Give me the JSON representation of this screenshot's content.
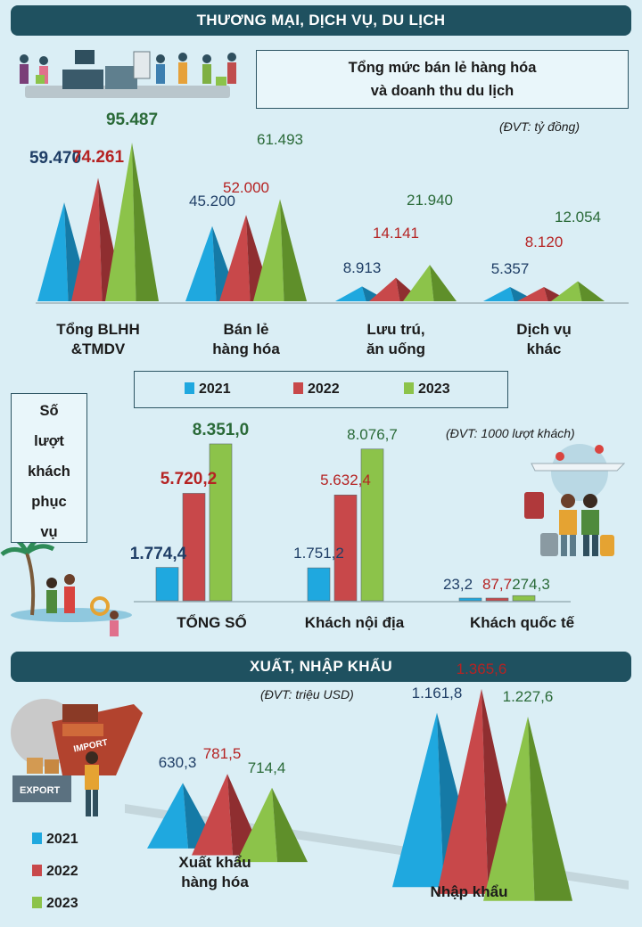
{
  "sections": {
    "trade": "THƯƠNG MẠI, DỊCH VỤ, DU LỊCH",
    "export": "XUẤT, NHẬP KHẨU"
  },
  "retail": {
    "title_line1": "Tổng mức bán lẻ hàng hóa",
    "title_line2": "và doanh thu du lịch",
    "unit": "(ĐVT: tỷ đồng)"
  },
  "visitors": {
    "box_lines": [
      "Số",
      "lượt",
      "khách",
      "phục",
      "vụ"
    ],
    "unit": "(ĐVT: 1000 lượt khách)"
  },
  "export_unit": "(ĐVT: triệu USD)",
  "legend": {
    "years": [
      "2021",
      "2022",
      "2023"
    ],
    "export_badge": "EXPORT",
    "import_badge": "IMPORT"
  },
  "colors": {
    "y2021": "#1fa8df",
    "y2022": "#c8484a",
    "y2023": "#8cc34a",
    "text2021": "#1f3e66",
    "text2022": "#b52323",
    "text2023": "#2a6a38",
    "banner": "#1f5160"
  },
  "chart_data": [
    {
      "type": "bar",
      "id": "retail",
      "categories": [
        "Tổng BLHH\n&TMDV",
        "Bán lẻ\nhàng hóa",
        "Lưu trú,\năn uống",
        "Dịch vụ\nkhác"
      ],
      "series": [
        {
          "name": "2021",
          "values": [
            59470,
            45200,
            8913,
            5357
          ],
          "labels": [
            "59.470",
            "45.200",
            "8.913",
            "5.357"
          ]
        },
        {
          "name": "2022",
          "values": [
            74261,
            52000,
            14141,
            8120
          ],
          "labels": [
            "74.261",
            "52.000",
            "14.141",
            "8.120"
          ]
        },
        {
          "name": "2023",
          "values": [
            95487,
            61493,
            21940,
            12054
          ],
          "labels": [
            "95.487",
            "61.493",
            "21.940",
            "12.054"
          ]
        }
      ]
    },
    {
      "type": "bar",
      "id": "visitors",
      "categories": [
        "TỔNG SỐ",
        "Khách nội địa",
        "Khách quốc tế"
      ],
      "series": [
        {
          "name": "2021",
          "values": [
            1774.4,
            1751.2,
            23.2
          ],
          "labels": [
            "1.774,4",
            "1.751,2",
            "23,2"
          ]
        },
        {
          "name": "2022",
          "values": [
            5720.2,
            5632.4,
            87.7
          ],
          "labels": [
            "5.720,2",
            "5.632,4",
            "87,7"
          ]
        },
        {
          "name": "2023",
          "values": [
            8351.0,
            8076.7,
            274.3
          ],
          "labels": [
            "8.351,0",
            "8.076,7",
            "274,3"
          ]
        }
      ]
    },
    {
      "type": "bar",
      "id": "trade",
      "categories": [
        "Xuất khẩu\nhàng hóa",
        "Nhập khẩu"
      ],
      "series": [
        {
          "name": "2021",
          "values": [
            630.3,
            1161.8
          ],
          "labels": [
            "630,3",
            "1.161,8"
          ]
        },
        {
          "name": "2022",
          "values": [
            781.5,
            1365.6
          ],
          "labels": [
            "781,5",
            "1.365,6"
          ]
        },
        {
          "name": "2023",
          "values": [
            714.4,
            1227.6
          ],
          "labels": [
            "714,4",
            "1.227,6"
          ]
        }
      ]
    }
  ]
}
